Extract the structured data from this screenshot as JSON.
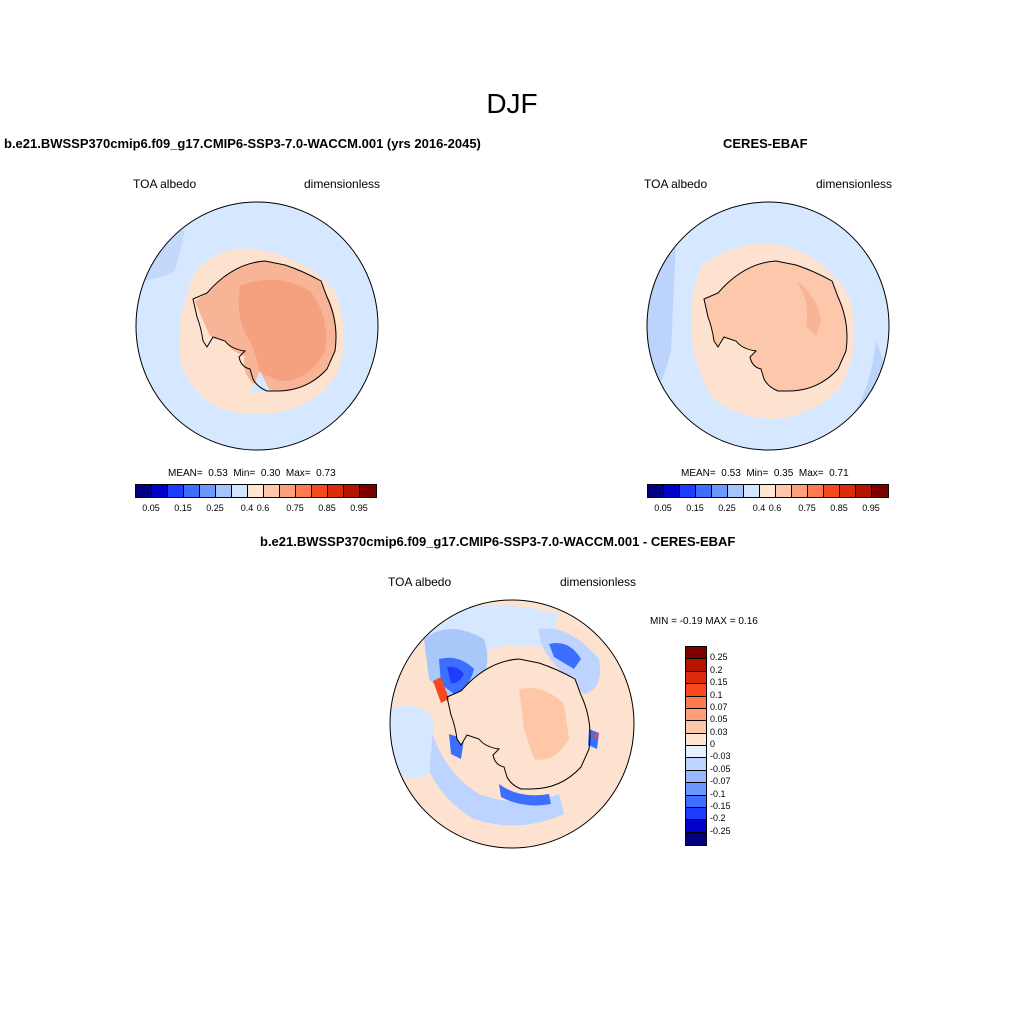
{
  "title": "DJF",
  "panels": {
    "model": {
      "title": "b.e21.BWSSP370cmip6.f09_g17.CMIP6-SSP3-7.0-WACCM.001 (yrs 2016-2045)",
      "left_label": "TOA albedo",
      "right_label": "dimensionless",
      "mean_label": "MEAN=",
      "mean": "0.53",
      "min_label": "Min=",
      "min": "0.30",
      "max_label": "Max=",
      "max": "0.73"
    },
    "obs": {
      "title": "CERES-EBAF",
      "left_label": "TOA albedo",
      "right_label": "dimensionless",
      "mean_label": "MEAN=",
      "mean": "0.53",
      "min_label": "Min=",
      "min": "0.35",
      "max_label": "Max=",
      "max": "0.71"
    },
    "diff": {
      "title": "b.e21.BWSSP370cmip6.f09_g17.CMIP6-SSP3-7.0-WACCM.001 - CERES-EBAF",
      "left_label": "TOA albedo",
      "right_label": "dimensionless",
      "minmax_label": "MIN =  -0.19 MAX =   0.16"
    }
  },
  "colorbar_abs": {
    "colors": [
      "#000080",
      "#0000c8",
      "#1e3cff",
      "#3c6eff",
      "#6a98ff",
      "#a5c3ff",
      "#d4e6ff",
      "#ffe6d2",
      "#ffc6a8",
      "#ffa07a",
      "#ff7a50",
      "#f54a1e",
      "#dc2a0a",
      "#b41400",
      "#7d0000"
    ],
    "ticks": [
      "0.05",
      "0.15",
      "0.25",
      "0.4",
      "0.6",
      "0.75",
      "0.85",
      "0.95"
    ]
  },
  "colorbar_diff": {
    "colors": [
      "#7d0000",
      "#b41400",
      "#dc2a0a",
      "#f54a1e",
      "#ff7a50",
      "#ffa07a",
      "#ffc6a8",
      "#ffe6d2",
      "#e8f2ff",
      "#bcd4ff",
      "#96b8ff",
      "#6a98ff",
      "#3c6eff",
      "#1e3cff",
      "#0000c8",
      "#000080"
    ],
    "ticks": [
      "0.25",
      "0.2",
      "0.15",
      "0.1",
      "0.07",
      "0.05",
      "0.03",
      "0",
      "-0.03",
      "-0.05",
      "-0.07",
      "-0.1",
      "-0.15",
      "-0.2",
      "-0.25"
    ]
  },
  "colors": {
    "ocean_model": "#d6e8ff",
    "ocean_obs": "#d6e8ff",
    "land_model": "#f5a07e",
    "land_obs": "#fcc7ab",
    "sea_ice_model": "#fde2cf",
    "sea_ice_obs": "#fde2cf",
    "blue_tint": "#a8c8fa"
  }
}
